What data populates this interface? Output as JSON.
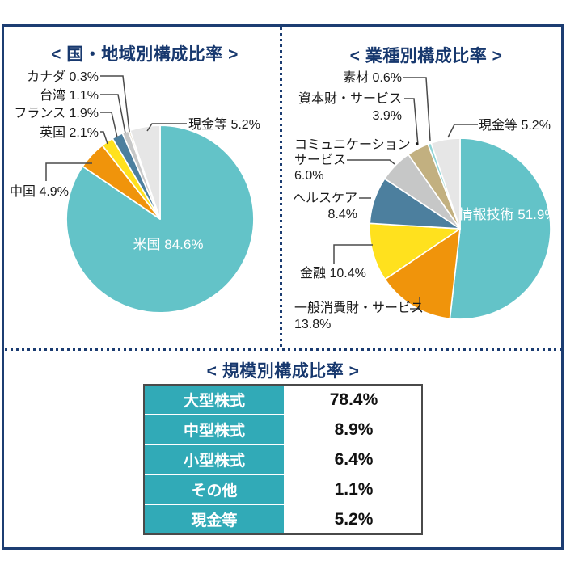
{
  "page": {
    "background": "#ffffff",
    "frame_color": "#1c3d72",
    "accent_navy": "#17386e",
    "table_header_teal": "#31aab7",
    "leader_line_color": "#4a4a4a"
  },
  "chart_data": [
    {
      "type": "pie",
      "title": "< 国・地域別構成比率 >",
      "unit": "%",
      "slices": [
        {
          "name": "米国",
          "value": 84.6,
          "color": "#63c3c8"
        },
        {
          "name": "中国",
          "value": 4.9,
          "color": "#f0940b"
        },
        {
          "name": "英国",
          "value": 2.1,
          "color": "#ffe11e"
        },
        {
          "name": "フランス",
          "value": 1.9,
          "color": "#4c7f9e"
        },
        {
          "name": "台湾",
          "value": 1.1,
          "color": "#c6c7c7"
        },
        {
          "name": "カナダ",
          "value": 0.3,
          "color": "#c2b080"
        },
        {
          "name": "現金等",
          "value": 5.2,
          "color": "#e6e6e6"
        }
      ],
      "labels": {
        "canada": "カナダ 0.3%",
        "taiwan": "台湾 1.1%",
        "france": "フランス 1.9%",
        "uk": "英国 2.1%",
        "china": "中国 4.9%",
        "cash": "現金等 5.2%",
        "usa_line1": "米国",
        "usa_line2": "84.6%"
      }
    },
    {
      "type": "pie",
      "title": "< 業種別構成比率 >",
      "unit": "%",
      "slices": [
        {
          "name": "情報技術",
          "value": 51.9,
          "color": "#63c3c8"
        },
        {
          "name": "一般消費財・サービス",
          "value": 13.8,
          "color": "#f0940b"
        },
        {
          "name": "金融",
          "value": 10.4,
          "color": "#ffe11e"
        },
        {
          "name": "ヘルスケア",
          "value": 8.4,
          "color": "#4c7f9e"
        },
        {
          "name": "コミュニケーション・サービス",
          "value": 6.0,
          "color": "#c6c7c7"
        },
        {
          "name": "資本財・サービス",
          "value": 3.9,
          "color": "#c2b080"
        },
        {
          "name": "素材",
          "value": 0.6,
          "color": "#8fd4d6"
        },
        {
          "name": "現金等",
          "value": 5.2,
          "color": "#e6e6e6"
        }
      ],
      "labels": {
        "materials": "素材 0.6%",
        "capital_line1": "資本財・サービス",
        "capital_line2": "3.9%",
        "comm_line1": "コミュニケーション・",
        "comm_line2": "サービス",
        "comm_line3": "6.0%",
        "health_line1": "ヘルスケア",
        "health_line2": "8.4%",
        "financials": "金融 10.4%",
        "consumer_line1": "一般消費財・サービス",
        "consumer_line2": "13.8%",
        "cash": "現金等 5.2%",
        "it_line1": "情報技術",
        "it_line2": "51.9%"
      }
    },
    {
      "type": "table",
      "title": "< 規模別構成比率 >",
      "rows": [
        {
          "label": "大型株式",
          "value": "78.4%"
        },
        {
          "label": "中型株式",
          "value": "8.9%"
        },
        {
          "label": "小型株式",
          "value": "6.4%"
        },
        {
          "label": "その他",
          "value": "1.1%"
        },
        {
          "label": "現金等",
          "value": "5.2%"
        }
      ]
    }
  ]
}
